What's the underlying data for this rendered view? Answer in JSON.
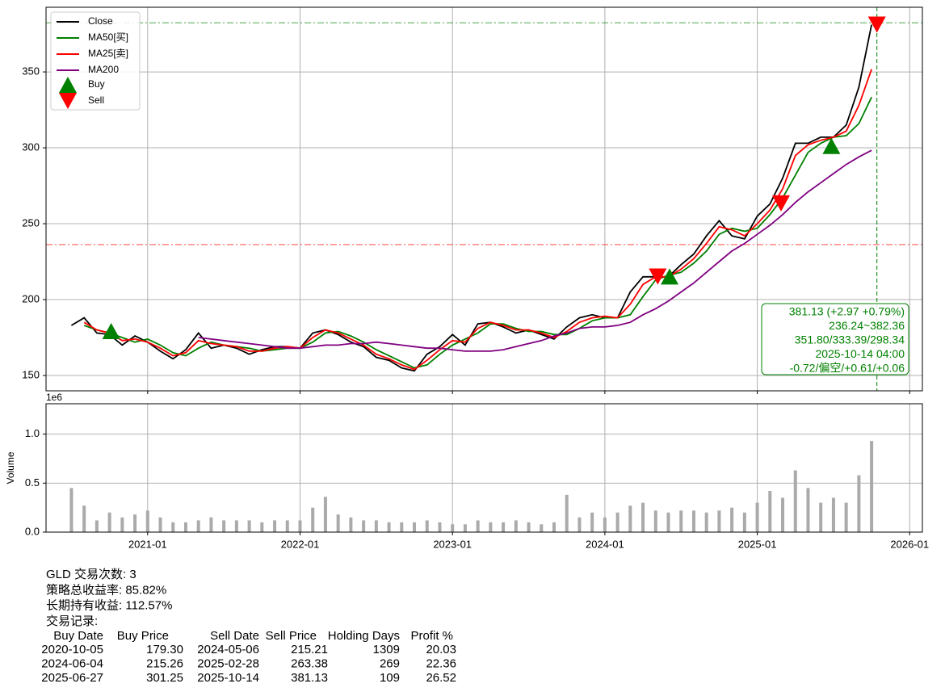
{
  "chart_data": [
    {
      "type": "line",
      "x": [
        "2020-07",
        "2020-08",
        "2020-09",
        "2020-10",
        "2020-11",
        "2020-12",
        "2021-01",
        "2021-02",
        "2021-03",
        "2021-04",
        "2021-05",
        "2021-06",
        "2021-07",
        "2021-08",
        "2021-09",
        "2021-10",
        "2021-11",
        "2021-12",
        "2022-01",
        "2022-02",
        "2022-03",
        "2022-04",
        "2022-05",
        "2022-06",
        "2022-07",
        "2022-08",
        "2022-09",
        "2022-10",
        "2022-11",
        "2022-12",
        "2023-01",
        "2023-02",
        "2023-03",
        "2023-04",
        "2023-05",
        "2023-06",
        "2023-07",
        "2023-08",
        "2023-09",
        "2023-10",
        "2023-11",
        "2023-12",
        "2024-01",
        "2024-02",
        "2024-03",
        "2024-04",
        "2024-05",
        "2024-06",
        "2024-07",
        "2024-08",
        "2024-09",
        "2024-10",
        "2024-11",
        "2024-12",
        "2025-01",
        "2025-02",
        "2025-03",
        "2025-04",
        "2025-05",
        "2025-06",
        "2025-07",
        "2025-08",
        "2025-09",
        "2025-10"
      ],
      "xlim": [
        "2020-05",
        "2026-02"
      ],
      "xticks": [
        "2021-01",
        "2022-01",
        "2023-01",
        "2024-01",
        "2025-01",
        "2026-01"
      ],
      "ylim": [
        139.9,
        392.6
      ],
      "yticks": [
        150,
        200,
        250,
        300,
        350
      ],
      "grid": true,
      "legend": "upper left",
      "series": [
        {
          "name": "Close",
          "color": "#000000",
          "values": [
            183,
            188,
            178,
            177,
            170,
            176,
            172,
            166,
            161,
            167,
            178,
            168,
            170,
            168,
            164,
            167,
            169,
            169,
            168,
            178,
            180,
            177,
            172,
            169,
            162,
            160,
            155,
            153,
            164,
            169,
            177,
            170,
            184,
            185,
            182,
            178,
            180,
            177,
            174,
            182,
            188,
            190,
            188,
            188,
            205,
            215,
            215,
            215,
            223,
            230,
            242,
            252,
            242,
            240,
            255,
            263,
            280,
            303,
            303,
            307,
            307,
            315,
            340,
            381.13
          ]
        },
        {
          "name": "MA50[买]",
          "color": "#008000",
          "values": [
            null,
            183,
            180,
            178,
            175,
            172,
            174,
            170,
            165,
            163,
            168,
            172,
            170,
            169,
            168,
            166,
            167,
            168,
            168,
            172,
            178,
            179,
            176,
            172,
            167,
            163,
            159,
            155,
            157,
            164,
            170,
            174,
            178,
            184,
            184,
            181,
            179,
            179,
            177,
            177,
            181,
            186,
            188,
            188,
            190,
            202,
            213,
            216,
            218,
            224,
            232,
            243,
            247,
            245,
            247,
            256,
            267,
            282,
            297,
            303,
            307,
            308,
            316,
            333.39
          ]
        },
        {
          "name": "MA25[卖]",
          "color": "#ff0000",
          "values": [
            null,
            185,
            180,
            178,
            173,
            174,
            172,
            168,
            163,
            165,
            173,
            171,
            170,
            169,
            166,
            166,
            168,
            169,
            168,
            175,
            180,
            178,
            174,
            170,
            164,
            161,
            157,
            154,
            160,
            167,
            173,
            172,
            181,
            185,
            183,
            180,
            180,
            178,
            175,
            179,
            185,
            188,
            189,
            188,
            197,
            210,
            215,
            215,
            220,
            227,
            237,
            248,
            246,
            242,
            250,
            259,
            273,
            295,
            302,
            305,
            307,
            311,
            328,
            351.8
          ]
        },
        {
          "name": "MA200",
          "color": "#800080",
          "values": [
            null,
            null,
            null,
            null,
            null,
            null,
            null,
            null,
            null,
            null,
            175,
            174,
            173,
            172,
            171,
            170,
            169,
            168,
            168,
            169,
            170,
            170,
            171,
            171,
            172,
            171,
            170,
            169,
            168,
            168,
            167,
            166,
            166,
            166,
            167,
            169,
            171,
            173,
            176,
            178,
            181,
            182,
            182,
            183,
            185,
            190,
            194,
            199,
            205,
            211,
            218,
            225,
            232,
            237,
            243,
            249,
            256,
            264,
            271,
            277,
            283,
            289,
            294,
            298.34
          ]
        }
      ],
      "markers": [
        {
          "name": "Buy",
          "color": "#008000",
          "shape": "triangle-up",
          "x": [
            "2020-10-05",
            "2024-06-04",
            "2025-06-27"
          ],
          "values": [
            179.3,
            215.26,
            301.25
          ]
        },
        {
          "name": "Sell",
          "color": "#ff0000",
          "shape": "triangle-down",
          "x": [
            "2024-05-06",
            "2025-02-28",
            "2025-10-14"
          ],
          "values": [
            215.21,
            263.38,
            381.13
          ]
        }
      ],
      "hlines": [
        {
          "value": 382.36,
          "color": "#008000"
        },
        {
          "value": 236.24,
          "color": "#ff0000"
        }
      ],
      "vline": {
        "x": "2025-10-14",
        "color": "#008000"
      },
      "info_box": [
        "381.13 (+2.97 +0.79%)",
        "236.24~382.36",
        "351.80/333.39/298.34",
        "2025-10-14 04:00",
        "-0.72/偏空/+0.61/+0.06"
      ]
    },
    {
      "type": "bar",
      "x": [
        "2020-07",
        "2020-08",
        "2020-09",
        "2020-10",
        "2020-11",
        "2020-12",
        "2021-01",
        "2021-02",
        "2021-03",
        "2021-04",
        "2021-05",
        "2021-06",
        "2021-07",
        "2021-08",
        "2021-09",
        "2021-10",
        "2021-11",
        "2021-12",
        "2022-01",
        "2022-02",
        "2022-03",
        "2022-04",
        "2022-05",
        "2022-06",
        "2022-07",
        "2022-08",
        "2022-09",
        "2022-10",
        "2022-11",
        "2022-12",
        "2023-01",
        "2023-02",
        "2023-03",
        "2023-04",
        "2023-05",
        "2023-06",
        "2023-07",
        "2023-08",
        "2023-09",
        "2023-10",
        "2023-11",
        "2023-12",
        "2024-01",
        "2024-02",
        "2024-03",
        "2024-04",
        "2024-05",
        "2024-06",
        "2024-07",
        "2024-08",
        "2024-09",
        "2024-10",
        "2024-11",
        "2024-12",
        "2025-01",
        "2025-02",
        "2025-03",
        "2025-04",
        "2025-05",
        "2025-06",
        "2025-07",
        "2025-08",
        "2025-09",
        "2025-10"
      ],
      "xlim": [
        "2020-05",
        "2026-02"
      ],
      "xticks": [
        "2021-01",
        "2022-01",
        "2023-01",
        "2024-01",
        "2025-01",
        "2026-01"
      ],
      "ylabel": "Volume",
      "offset_label": "1e6",
      "ylim": [
        0,
        1.31
      ],
      "yticks": [
        {
          "value": 0,
          "label": "0.0"
        },
        {
          "value": 0.5,
          "label": "0.5"
        },
        {
          "value": 1,
          "label": "1.0"
        }
      ],
      "grid": true,
      "color": "#aaaaaa",
      "values": [
        0.45,
        0.27,
        0.12,
        0.2,
        0.15,
        0.18,
        0.22,
        0.15,
        0.1,
        0.1,
        0.12,
        0.15,
        0.12,
        0.12,
        0.12,
        0.1,
        0.12,
        0.12,
        0.12,
        0.25,
        0.36,
        0.18,
        0.15,
        0.12,
        0.12,
        0.1,
        0.1,
        0.1,
        0.12,
        0.1,
        0.08,
        0.08,
        0.12,
        0.1,
        0.1,
        0.12,
        0.1,
        0.08,
        0.1,
        0.38,
        0.15,
        0.2,
        0.15,
        0.2,
        0.27,
        0.3,
        0.22,
        0.2,
        0.22,
        0.22,
        0.2,
        0.22,
        0.25,
        0.2,
        0.3,
        0.42,
        0.35,
        0.63,
        0.45,
        0.3,
        0.35,
        0.3,
        0.58,
        0.93
      ]
    }
  ],
  "report": {
    "lines": [
      "GLD 交易次数: 3",
      "策略总收益率: 85.82%",
      "长期持有收益: 112.57%",
      "交易记录:"
    ],
    "table": {
      "header": [
        "Buy Date",
        "Buy Price",
        "Sell Date",
        "Sell Price",
        "Holding Days",
        "Profit %"
      ],
      "rows": [
        [
          "2020-10-05",
          "179.30",
          "2024-05-06",
          "215.21",
          "1309",
          "20.03"
        ],
        [
          "2024-06-04",
          "215.26",
          "2025-02-28",
          "263.38",
          "269",
          "22.36"
        ],
        [
          "2025-06-27",
          "301.25",
          "2025-10-14",
          "381.13",
          "109",
          "26.52"
        ]
      ]
    }
  }
}
